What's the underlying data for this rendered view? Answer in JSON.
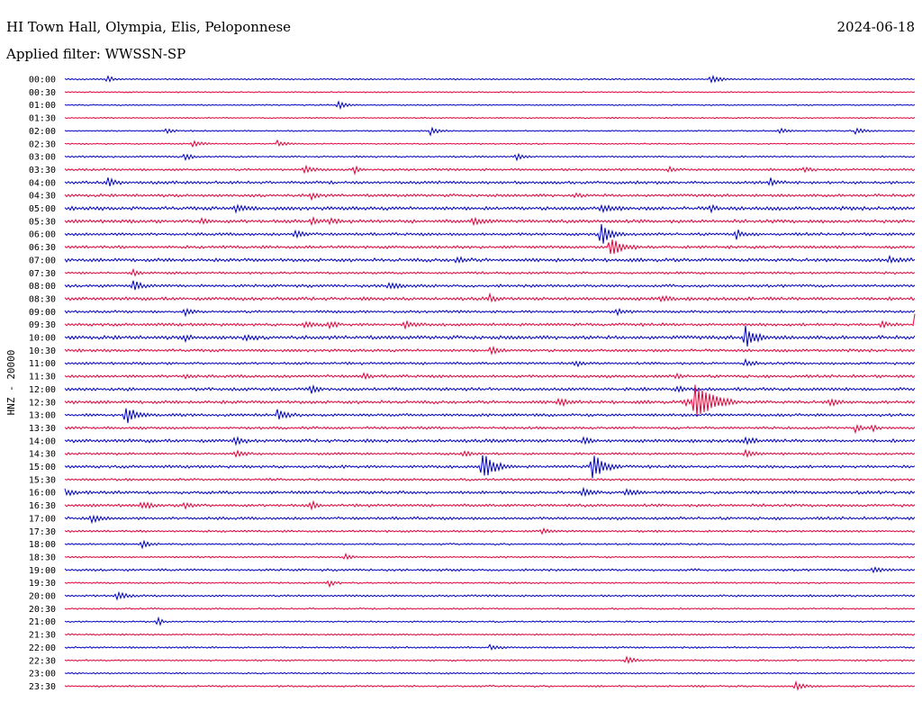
{
  "header": {
    "station": "HI Town Hall, Olympia, Elis, Peloponnese",
    "date": "2024-06-18",
    "filter": "Applied filter: WWSSN-SP"
  },
  "colors": {
    "even_row": "#0000cc",
    "odd_row": "#e8003a",
    "background": "#ffffff"
  },
  "chart_data": {
    "type": "line",
    "ylabel": "HNZ - 20000",
    "grid": false,
    "legend": "none",
    "rows": [
      {
        "label": "00:00",
        "activity": 0.1,
        "events": [
          0.05,
          0.76
        ]
      },
      {
        "label": "00:30",
        "activity": 0.05,
        "events": []
      },
      {
        "label": "01:00",
        "activity": 0.05,
        "events": [
          0.32
        ]
      },
      {
        "label": "01:30",
        "activity": 0.05,
        "events": []
      },
      {
        "label": "02:00",
        "activity": 0.08,
        "events": [
          0.12,
          0.43,
          0.84,
          0.93
        ]
      },
      {
        "label": "02:30",
        "activity": 0.06,
        "events": [
          0.15,
          0.25
        ]
      },
      {
        "label": "03:00",
        "activity": 0.15,
        "events": [
          0.14,
          0.53
        ]
      },
      {
        "label": "03:30",
        "activity": 0.25,
        "events": [
          0.28,
          0.34,
          0.71,
          0.87
        ]
      },
      {
        "label": "04:00",
        "activity": 0.35,
        "events": [
          0.05,
          0.83
        ]
      },
      {
        "label": "04:30",
        "activity": 0.35,
        "events": [
          0.29,
          0.6
        ]
      },
      {
        "label": "05:00",
        "activity": 0.5,
        "events": [
          0.2,
          0.63,
          0.76
        ]
      },
      {
        "label": "05:30",
        "activity": 0.45,
        "events": [
          0.16,
          0.29,
          0.31,
          0.48
        ]
      },
      {
        "label": "06:00",
        "activity": 0.35,
        "events": [
          0.27,
          0.63,
          0.79
        ]
      },
      {
        "label": "06:30",
        "activity": 0.35,
        "events": [
          0.64
        ]
      },
      {
        "label": "07:00",
        "activity": 0.45,
        "events": [
          0.46,
          0.97
        ]
      },
      {
        "label": "07:30",
        "activity": 0.25,
        "events": [
          0.08
        ]
      },
      {
        "label": "08:00",
        "activity": 0.35,
        "events": [
          0.08,
          0.38
        ]
      },
      {
        "label": "08:30",
        "activity": 0.45,
        "events": [
          0.5,
          0.7
        ]
      },
      {
        "label": "09:00",
        "activity": 0.3,
        "events": [
          0.14,
          0.65
        ]
      },
      {
        "label": "09:30",
        "activity": 0.35,
        "events": [
          0.28,
          0.31,
          0.4,
          0.96,
          1.0
        ]
      },
      {
        "label": "10:00",
        "activity": 0.5,
        "events": [
          0.14,
          0.21,
          0.8
        ]
      },
      {
        "label": "10:30",
        "activity": 0.35,
        "events": [
          0.5
        ]
      },
      {
        "label": "11:00",
        "activity": 0.3,
        "events": [
          0.6,
          0.8
        ]
      },
      {
        "label": "11:30",
        "activity": 0.35,
        "events": [
          0.14,
          0.35,
          0.72
        ]
      },
      {
        "label": "12:00",
        "activity": 0.4,
        "events": [
          0.29,
          0.72
        ]
      },
      {
        "label": "12:30",
        "activity": 0.4,
        "events": [
          0.58,
          0.73,
          0.9
        ]
      },
      {
        "label": "13:00",
        "activity": 0.35,
        "events": [
          0.07,
          0.25
        ]
      },
      {
        "label": "13:30",
        "activity": 0.3,
        "events": [
          0.93,
          0.95
        ]
      },
      {
        "label": "14:00",
        "activity": 0.45,
        "events": [
          0.2,
          0.61,
          0.8
        ]
      },
      {
        "label": "14:30",
        "activity": 0.25,
        "events": [
          0.2,
          0.47,
          0.8
        ]
      },
      {
        "label": "15:00",
        "activity": 0.35,
        "events": [
          0.49,
          0.62
        ]
      },
      {
        "label": "15:30",
        "activity": 0.25,
        "events": []
      },
      {
        "label": "16:00",
        "activity": 0.4,
        "events": [
          0.0,
          0.61,
          0.66
        ]
      },
      {
        "label": "16:30",
        "activity": 0.35,
        "events": [
          0.09,
          0.14,
          0.29
        ]
      },
      {
        "label": "17:00",
        "activity": 0.35,
        "events": [
          0.03
        ]
      },
      {
        "label": "17:30",
        "activity": 0.2,
        "events": [
          0.56
        ]
      },
      {
        "label": "18:00",
        "activity": 0.15,
        "events": [
          0.09
        ]
      },
      {
        "label": "18:30",
        "activity": 0.15,
        "events": [
          0.33
        ]
      },
      {
        "label": "19:00",
        "activity": 0.25,
        "events": [
          0.95
        ]
      },
      {
        "label": "19:30",
        "activity": 0.15,
        "events": [
          0.31
        ]
      },
      {
        "label": "20:00",
        "activity": 0.2,
        "events": [
          0.06
        ]
      },
      {
        "label": "20:30",
        "activity": 0.12,
        "events": []
      },
      {
        "label": "21:00",
        "activity": 0.1,
        "events": [
          0.11
        ]
      },
      {
        "label": "21:30",
        "activity": 0.12,
        "events": []
      },
      {
        "label": "22:00",
        "activity": 0.15,
        "events": [
          0.5
        ]
      },
      {
        "label": "22:30",
        "activity": 0.12,
        "events": [
          0.66
        ]
      },
      {
        "label": "23:00",
        "activity": 0.1,
        "events": []
      },
      {
        "label": "23:30",
        "activity": 0.15,
        "events": [
          0.86
        ]
      }
    ],
    "major_events": [
      {
        "row": "12:30",
        "position": 0.74,
        "amplitude": 1.9
      },
      {
        "row": "15:00",
        "position": 0.49,
        "amplitude": 1.0
      },
      {
        "row": "15:00",
        "position": 0.62,
        "amplitude": 1.0
      },
      {
        "row": "13:00",
        "position": 0.07,
        "amplitude": 0.8
      },
      {
        "row": "06:00",
        "position": 0.63,
        "amplitude": 0.75
      },
      {
        "row": "06:30",
        "position": 0.64,
        "amplitude": 0.8
      },
      {
        "row": "09:30",
        "position": 1.0,
        "amplitude": 0.9
      },
      {
        "row": "10:00",
        "position": 0.8,
        "amplitude": 0.8
      }
    ]
  }
}
